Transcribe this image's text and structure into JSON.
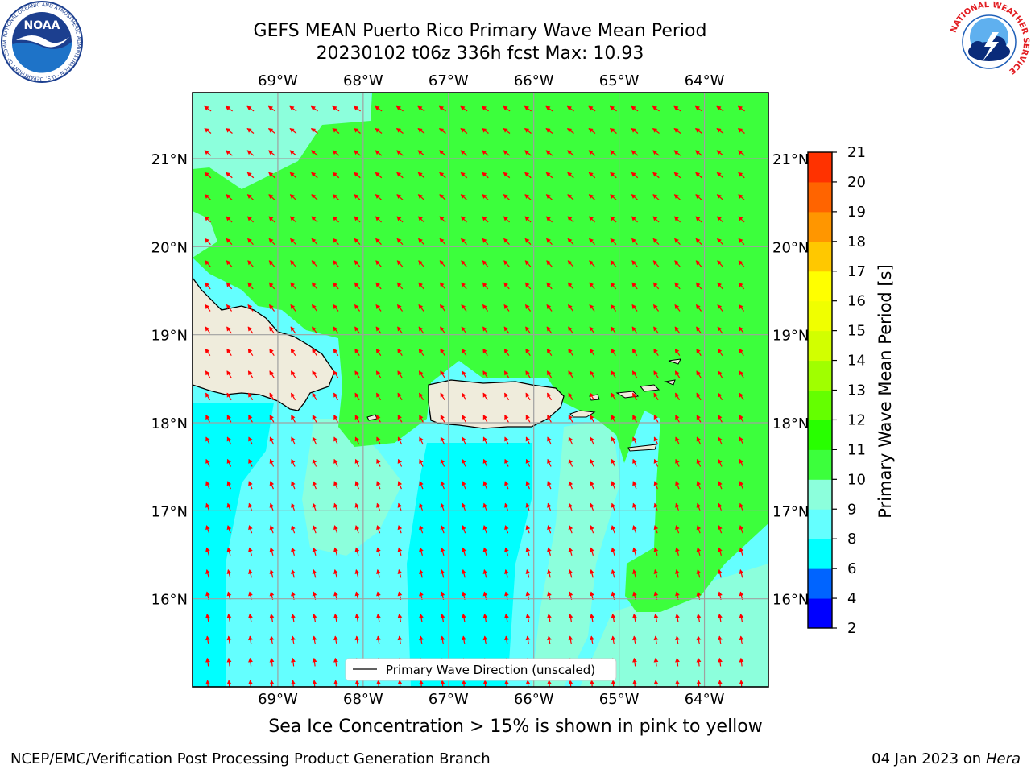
{
  "header": {
    "title_line1": "GEFS MEAN Puerto Rico Primary Wave Mean Period",
    "title_line2": "20230102 t06z 336h fcst   Max: 10.93"
  },
  "logos": {
    "noaa": {
      "text": "NOAA",
      "ring_text": "NATIONAL OCEANIC AND ATMOSPHERIC ADMINISTRATION · U.S. DEPARTMENT OF COMMERCE",
      "colors": {
        "dark_blue": "#1c3f8f",
        "light_blue": "#1e73c8",
        "white": "#ffffff"
      }
    },
    "nws": {
      "ring_text": "NATIONAL WEATHER SERVICE",
      "colors": {
        "red": "#e21d22",
        "blue": "#1f5fb8",
        "dark_blue": "#0a2b7a"
      }
    }
  },
  "map": {
    "lon_labels": [
      "69°W",
      "68°W",
      "67°W",
      "66°W",
      "65°W",
      "64°W"
    ],
    "lat_labels": [
      "21°N",
      "20°N",
      "19°N",
      "18°N",
      "17°N",
      "16°N"
    ],
    "lon_values": [
      -69,
      -68,
      -67,
      -66,
      -65,
      -64
    ],
    "lat_values": [
      21,
      20,
      19,
      18,
      17,
      16
    ],
    "extent": {
      "lon_min": -70,
      "lon_max": -63.25,
      "lat_min": 15,
      "lat_max": 21.75
    },
    "legend_label": "Primary Wave Direction (unscaled)",
    "arrow_color": "#ff0000",
    "land_color": "#efecdc",
    "grid": true
  },
  "colorbar": {
    "label": "Primary Wave Mean Period [s]",
    "ticks": [
      "2",
      "4",
      "6",
      "8",
      "9",
      "10",
      "11",
      "12",
      "13",
      "14",
      "15",
      "16",
      "17",
      "18",
      "19",
      "20",
      "21"
    ],
    "colors": [
      "#0000ff",
      "#0064ff",
      "#00ffff",
      "#64ffff",
      "#8cffdc",
      "#3cff3c",
      "#28ff00",
      "#64ff00",
      "#a0ff00",
      "#d2ff00",
      "#f0ff00",
      "#ffff00",
      "#ffc800",
      "#ff9600",
      "#ff6400",
      "#ff3200",
      "#ff0000"
    ]
  },
  "subtitle": "Sea Ice Concentration > 15% is shown in pink to yellow",
  "footer": {
    "left": "NCEP/EMC/Verification Post Processing Product Generation Branch",
    "date": "04 Jan 2023 on",
    "machine": "Hera"
  }
}
